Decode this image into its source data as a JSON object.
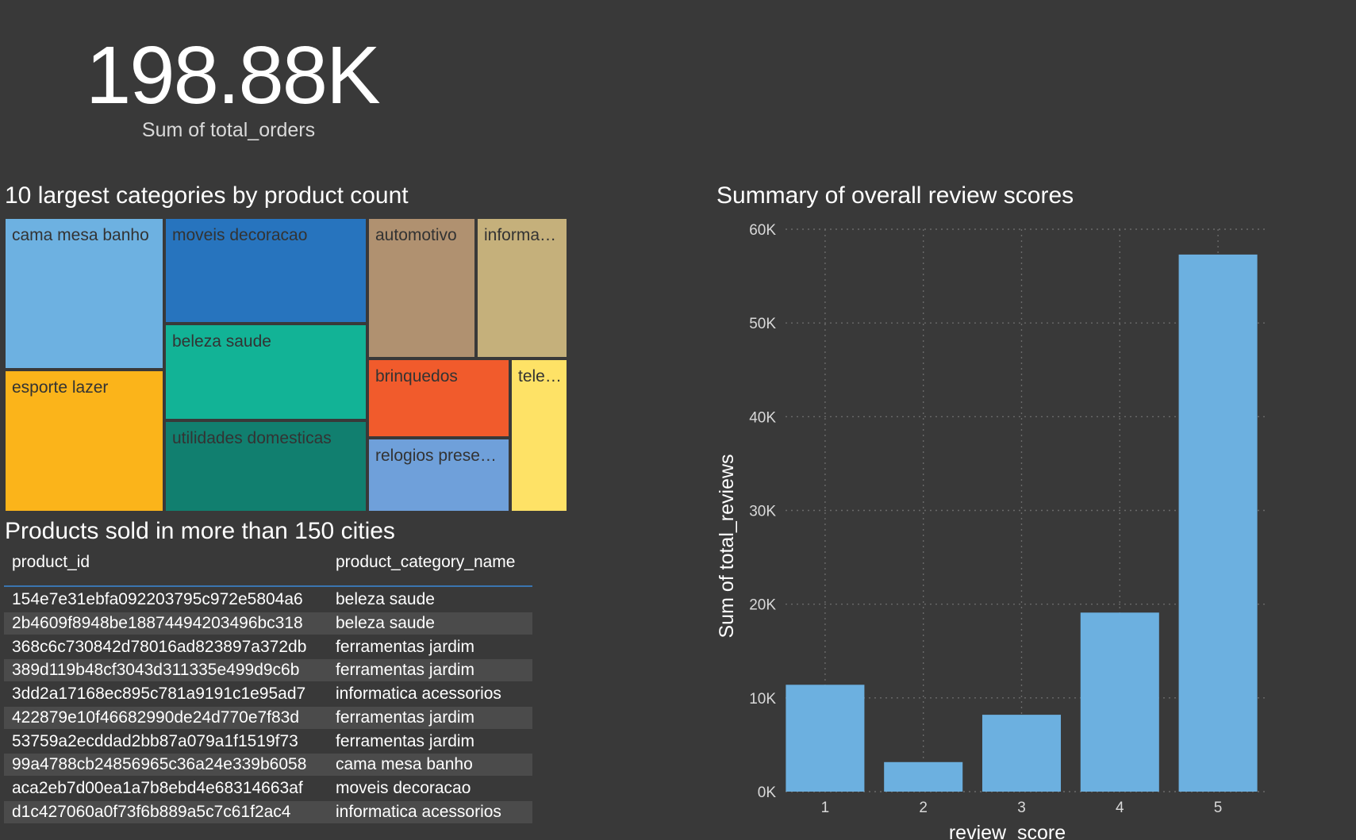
{
  "kpi": {
    "value": "198.88K",
    "label": "Sum of total_orders"
  },
  "treemap": {
    "title": "10 largest categories by product count",
    "tiles": [
      {
        "label": "cama mesa banho",
        "color": "#6db1e1"
      },
      {
        "label": "esporte lazer",
        "color": "#fbb41a"
      },
      {
        "label": "moveis decoracao",
        "color": "#2774be"
      },
      {
        "label": "beleza saude",
        "color": "#12b396"
      },
      {
        "label": "utilidades domesticas",
        "color": "#117f6f"
      },
      {
        "label": "automotivo",
        "color": "#b09170"
      },
      {
        "label": "informa…",
        "color": "#c5b07b"
      },
      {
        "label": "brinquedos",
        "color": "#f15b2c"
      },
      {
        "label": "relogios prese…",
        "color": "#6fa0da"
      },
      {
        "label": "tele…",
        "color": "#fee266"
      }
    ]
  },
  "table": {
    "title": "Products sold in more than 150 cities",
    "headers": [
      "product_id",
      "product_category_name"
    ],
    "rows": [
      [
        "154e7e31ebfa092203795c972e5804a6",
        "beleza saude"
      ],
      [
        "2b4609f8948be18874494203496bc318",
        "beleza saude"
      ],
      [
        "368c6c730842d78016ad823897a372db",
        "ferramentas jardim"
      ],
      [
        "389d119b48cf3043d311335e499d9c6b",
        "ferramentas jardim"
      ],
      [
        "3dd2a17168ec895c781a9191c1e95ad7",
        "informatica acessorios"
      ],
      [
        "422879e10f46682990de24d770e7f83d",
        "ferramentas jardim"
      ],
      [
        "53759a2ecddad2bb87a079a1f1519f73",
        "ferramentas jardim"
      ],
      [
        "99a4788cb24856965c36a24e339b6058",
        "cama mesa banho"
      ],
      [
        "aca2eb7d00ea1a7b8ebd4e68314663af",
        "moveis decoracao"
      ],
      [
        "d1c427060a0f73f6b889a5c7c61f2ac4",
        "informatica acessorios"
      ]
    ]
  },
  "chart_data": {
    "type": "bar",
    "title": "Summary of overall review scores",
    "xlabel": "review_score",
    "ylabel": "Sum of total_reviews",
    "categories": [
      "1",
      "2",
      "3",
      "4",
      "5"
    ],
    "values": [
      11400,
      3150,
      8200,
      19100,
      57300
    ],
    "ylim": [
      0,
      60000
    ],
    "yticks": [
      0,
      10000,
      20000,
      30000,
      40000,
      50000,
      60000
    ],
    "ytick_labels": [
      "0K",
      "10K",
      "20K",
      "30K",
      "40K",
      "50K",
      "60K"
    ],
    "grid": true,
    "bar_color": "#6cb0e0",
    "grid_color": "#6a6a6a"
  }
}
